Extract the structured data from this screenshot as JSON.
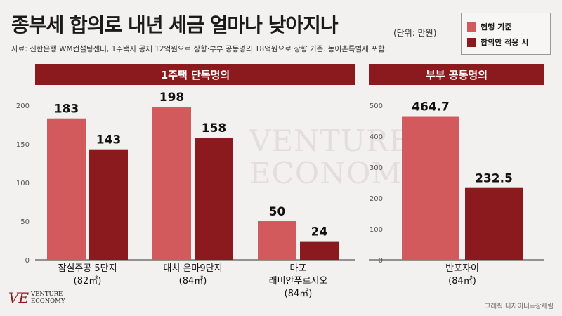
{
  "header": {
    "title": "종부세 합의로 내년 세금 얼마나 낮아지나",
    "unit": "(단위: 만원)",
    "source": "자료: 신한은행 WM컨설팅센터, 1주택자 공제 12억원으로 상향·부부 공동명의 18억원으로 상향 기준. 농어촌특별세 포함."
  },
  "legend": [
    {
      "label": "현행 기준",
      "color": "#d35a5c"
    },
    {
      "label": "합의안 적용 시",
      "color": "#8a1a1d"
    }
  ],
  "watermark": {
    "line1": "VENTURE",
    "line2": "ECONOMY"
  },
  "logo": {
    "mark": "VE",
    "line1": "VENTURE",
    "line2": "ECONOMY"
  },
  "credit": "그래픽 디자이너=장세림",
  "chart_data": [
    {
      "type": "bar",
      "title": "1주택 단독명의",
      "categories": [
        [
          "잠실주공 5단지",
          "(82㎡)"
        ],
        [
          "대치 은마9단지",
          "(84㎡)"
        ],
        [
          "마포",
          "래미안푸르지오",
          "(84㎡)"
        ]
      ],
      "series": [
        {
          "name": "현행 기준",
          "values": [
            183,
            198,
            50
          ]
        },
        {
          "name": "합의안 적용 시",
          "values": [
            143,
            158,
            24
          ]
        }
      ],
      "value_labels": [
        [
          "183",
          "198",
          "50"
        ],
        [
          "143",
          "158",
          "24"
        ]
      ],
      "ylim": [
        0,
        200
      ],
      "yticks": [
        0,
        50,
        100,
        150,
        200
      ],
      "grid": false
    },
    {
      "type": "bar",
      "title": "부부 공동명의",
      "categories": [
        [
          "반포자이",
          "(84㎡)"
        ]
      ],
      "series": [
        {
          "name": "현행 기준",
          "values": [
            464.7
          ]
        },
        {
          "name": "합의안 적용 시",
          "values": [
            232.5
          ]
        }
      ],
      "value_labels": [
        [
          "464.7"
        ],
        [
          "232.5"
        ]
      ],
      "ylim": [
        0,
        500
      ],
      "yticks": [
        0,
        100,
        200,
        300,
        400,
        500
      ],
      "grid": false
    }
  ]
}
